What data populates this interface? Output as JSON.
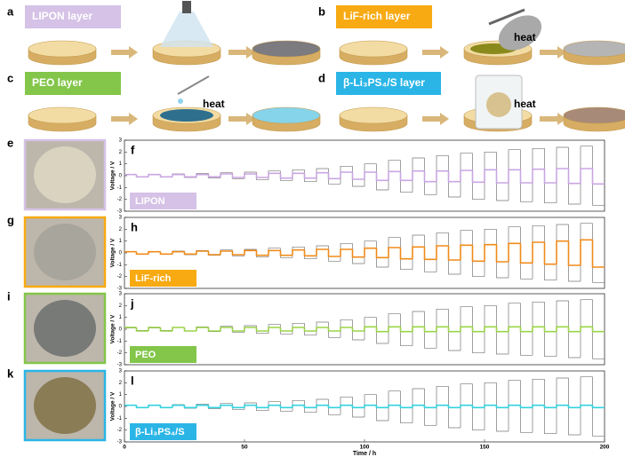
{
  "schematic": [
    {
      "letter": "a",
      "label": "LIPON layer",
      "color": "#d5c2e6",
      "result": "#7b7b80"
    },
    {
      "letter": "b",
      "label": "LiF-rich layer",
      "heat": "heat",
      "color": "#f7aa12",
      "result": "#b5b5b5"
    },
    {
      "letter": "c",
      "label": "PEO layer",
      "heat": "heat",
      "color": "#83c64a",
      "result": "#86d4ea"
    },
    {
      "letter": "d",
      "label": "β-Li₃PS₄/S layer",
      "heat": "heat",
      "color": "#2ab5e6",
      "result": "#a88a78"
    }
  ],
  "photos": [
    {
      "letter": "e",
      "color": "#d5c2e6"
    },
    {
      "letter": "g",
      "color": "#f7aa12"
    },
    {
      "letter": "i",
      "color": "#83c64a"
    },
    {
      "letter": "k",
      "color": "#2ab5e6"
    }
  ],
  "chart_data": [
    {
      "type": "line",
      "panel": "f",
      "ylabel": "Voltage / V",
      "legend_color": "#d5c2e6",
      "xlim": [
        0,
        200
      ],
      "ylim": [
        -3,
        3
      ],
      "yticks": [
        -3,
        -2,
        -1,
        0,
        1,
        2,
        3
      ],
      "x": [
        0,
        5,
        10,
        15,
        20,
        25,
        30,
        35,
        40,
        45,
        50,
        55,
        60,
        65,
        70,
        75,
        80,
        85,
        90,
        95,
        100,
        105,
        110,
        115,
        120,
        125,
        130,
        135,
        140,
        145,
        150,
        155,
        160,
        165,
        170,
        175,
        180,
        185,
        190,
        195
      ],
      "series": [
        {
          "color": "#777777",
          "values": [
            0.1,
            -0.1,
            0.1,
            -0.1,
            0.15,
            -0.15,
            0.2,
            -0.2,
            0.25,
            -0.25,
            0.3,
            -0.35,
            0.4,
            -0.4,
            0.5,
            -0.5,
            0.6,
            -0.7,
            0.8,
            -0.9,
            1.0,
            -1.2,
            1.3,
            -1.4,
            1.5,
            -1.6,
            1.7,
            -1.8,
            1.9,
            -2.0,
            2.0,
            -2.1,
            2.2,
            -2.2,
            2.3,
            -2.3,
            2.4,
            -2.4,
            2.5,
            -2.5
          ]
        },
        {
          "name": "LIPON",
          "color": "#c9a6e2",
          "values": [
            0.1,
            -0.1,
            0.1,
            -0.1,
            0.1,
            -0.1,
            0.1,
            -0.1,
            0.15,
            -0.15,
            0.15,
            -0.15,
            0.2,
            -0.2,
            0.2,
            -0.2,
            0.25,
            -0.25,
            0.3,
            -0.3,
            0.3,
            -0.4,
            0.35,
            -0.4,
            0.4,
            -0.5,
            0.4,
            -0.5,
            0.45,
            -0.55,
            0.5,
            -0.6,
            0.5,
            -0.6,
            0.55,
            -0.6,
            0.6,
            -0.65,
            0.6,
            -0.7
          ]
        }
      ]
    },
    {
      "type": "line",
      "panel": "h",
      "ylabel": "Voltage / V",
      "legend_color": "#f7aa12",
      "xlim": [
        0,
        200
      ],
      "ylim": [
        -3,
        3
      ],
      "yticks": [
        -3,
        -2,
        -1,
        0,
        1,
        2,
        3
      ],
      "x": [
        0,
        5,
        10,
        15,
        20,
        25,
        30,
        35,
        40,
        45,
        50,
        55,
        60,
        65,
        70,
        75,
        80,
        85,
        90,
        95,
        100,
        105,
        110,
        115,
        120,
        125,
        130,
        135,
        140,
        145,
        150,
        155,
        160,
        165,
        170,
        175,
        180,
        185,
        190,
        195
      ],
      "series": [
        {
          "color": "#777777",
          "values": [
            0.1,
            -0.1,
            0.1,
            -0.1,
            0.15,
            -0.15,
            0.2,
            -0.2,
            0.25,
            -0.25,
            0.3,
            -0.35,
            0.4,
            -0.4,
            0.5,
            -0.5,
            0.6,
            -0.7,
            0.8,
            -0.9,
            1.0,
            -1.2,
            1.3,
            -1.4,
            1.5,
            -1.6,
            1.7,
            -1.8,
            1.9,
            -2.0,
            2.0,
            -2.1,
            2.2,
            -2.2,
            2.3,
            -2.3,
            2.4,
            -2.4,
            2.5,
            -2.5
          ]
        },
        {
          "name": "LiF-rich",
          "color": "#f08c1a",
          "values": [
            0.1,
            -0.1,
            0.1,
            -0.1,
            0.1,
            -0.1,
            0.15,
            -0.15,
            0.15,
            -0.15,
            0.2,
            -0.2,
            0.2,
            -0.2,
            0.25,
            -0.25,
            0.3,
            -0.3,
            0.3,
            -0.35,
            0.4,
            -0.4,
            0.45,
            -0.5,
            0.5,
            -0.55,
            0.6,
            -0.6,
            0.65,
            -0.7,
            0.7,
            -0.75,
            0.8,
            -0.85,
            0.9,
            -0.95,
            1.0,
            -1.05,
            1.1,
            -1.2
          ]
        }
      ]
    },
    {
      "type": "line",
      "panel": "j",
      "ylabel": "Voltage / V",
      "legend_color": "#83c64a",
      "xlim": [
        0,
        200
      ],
      "ylim": [
        -3,
        3
      ],
      "yticks": [
        -3,
        -2,
        -1,
        0,
        1,
        2,
        3
      ],
      "x": [
        0,
        5,
        10,
        15,
        20,
        25,
        30,
        35,
        40,
        45,
        50,
        55,
        60,
        65,
        70,
        75,
        80,
        85,
        90,
        95,
        100,
        105,
        110,
        115,
        120,
        125,
        130,
        135,
        140,
        145,
        150,
        155,
        160,
        165,
        170,
        175,
        180,
        185,
        190,
        195
      ],
      "series": [
        {
          "color": "#777777",
          "values": [
            0.1,
            -0.1,
            0.1,
            -0.1,
            0.15,
            -0.15,
            0.2,
            -0.2,
            0.25,
            -0.25,
            0.3,
            -0.35,
            0.4,
            -0.4,
            0.5,
            -0.5,
            0.6,
            -0.7,
            0.8,
            -0.9,
            1.0,
            -1.2,
            1.3,
            -1.4,
            1.5,
            -1.6,
            1.7,
            -1.8,
            1.9,
            -2.0,
            2.0,
            -2.1,
            2.2,
            -2.2,
            2.3,
            -2.3,
            2.4,
            -2.4,
            2.5,
            -2.5
          ]
        },
        {
          "name": "PEO",
          "color": "#9ad44a",
          "values": [
            0.15,
            -0.15,
            0.15,
            -0.15,
            0.15,
            -0.15,
            0.15,
            -0.15,
            0.15,
            -0.15,
            0.15,
            -0.15,
            0.15,
            -0.15,
            0.15,
            -0.15,
            0.15,
            -0.15,
            0.15,
            -0.15,
            0.2,
            -0.2,
            0.2,
            -0.2,
            0.2,
            -0.2,
            0.2,
            -0.2,
            0.2,
            -0.2,
            0.2,
            -0.2,
            0.2,
            -0.2,
            0.2,
            -0.2,
            0.2,
            -0.2,
            0.2,
            -0.2
          ]
        }
      ]
    },
    {
      "type": "line",
      "panel": "l",
      "ylabel": "Voltage / V",
      "xlabel": "Time / h",
      "legend_color": "#2ab5e6",
      "xlim": [
        0,
        200
      ],
      "ylim": [
        -3,
        3
      ],
      "yticks": [
        -3,
        -2,
        -1,
        0,
        1,
        2,
        3
      ],
      "xticks": [
        0,
        50,
        100,
        150,
        200
      ],
      "x": [
        0,
        5,
        10,
        15,
        20,
        25,
        30,
        35,
        40,
        45,
        50,
        55,
        60,
        65,
        70,
        75,
        80,
        85,
        90,
        95,
        100,
        105,
        110,
        115,
        120,
        125,
        130,
        135,
        140,
        145,
        150,
        155,
        160,
        165,
        170,
        175,
        180,
        185,
        190,
        195
      ],
      "series": [
        {
          "color": "#777777",
          "values": [
            0.1,
            -0.1,
            0.1,
            -0.1,
            0.15,
            -0.15,
            0.2,
            -0.2,
            0.25,
            -0.25,
            0.3,
            -0.35,
            0.4,
            -0.4,
            0.5,
            -0.5,
            0.6,
            -0.7,
            0.8,
            -0.9,
            1.0,
            -1.2,
            1.3,
            -1.4,
            1.5,
            -1.6,
            1.7,
            -1.8,
            1.9,
            -2.0,
            2.0,
            -2.1,
            2.2,
            -2.2,
            2.3,
            -2.3,
            2.4,
            -2.4,
            2.5,
            -2.5
          ]
        },
        {
          "name": "β-Li₃PS₄/S",
          "color": "#33d3e0",
          "values": [
            0.1,
            -0.1,
            0.1,
            -0.1,
            0.1,
            -0.1,
            0.1,
            -0.1,
            0.1,
            -0.1,
            0.1,
            -0.1,
            0.1,
            -0.1,
            0.1,
            -0.1,
            0.1,
            -0.1,
            0.1,
            -0.1,
            0.1,
            -0.1,
            0.1,
            -0.1,
            0.1,
            -0.1,
            0.1,
            -0.1,
            0.1,
            -0.1,
            0.1,
            -0.1,
            0.1,
            -0.1,
            0.1,
            -0.1,
            0.1,
            -0.1,
            0.1,
            -0.1
          ]
        }
      ]
    }
  ]
}
